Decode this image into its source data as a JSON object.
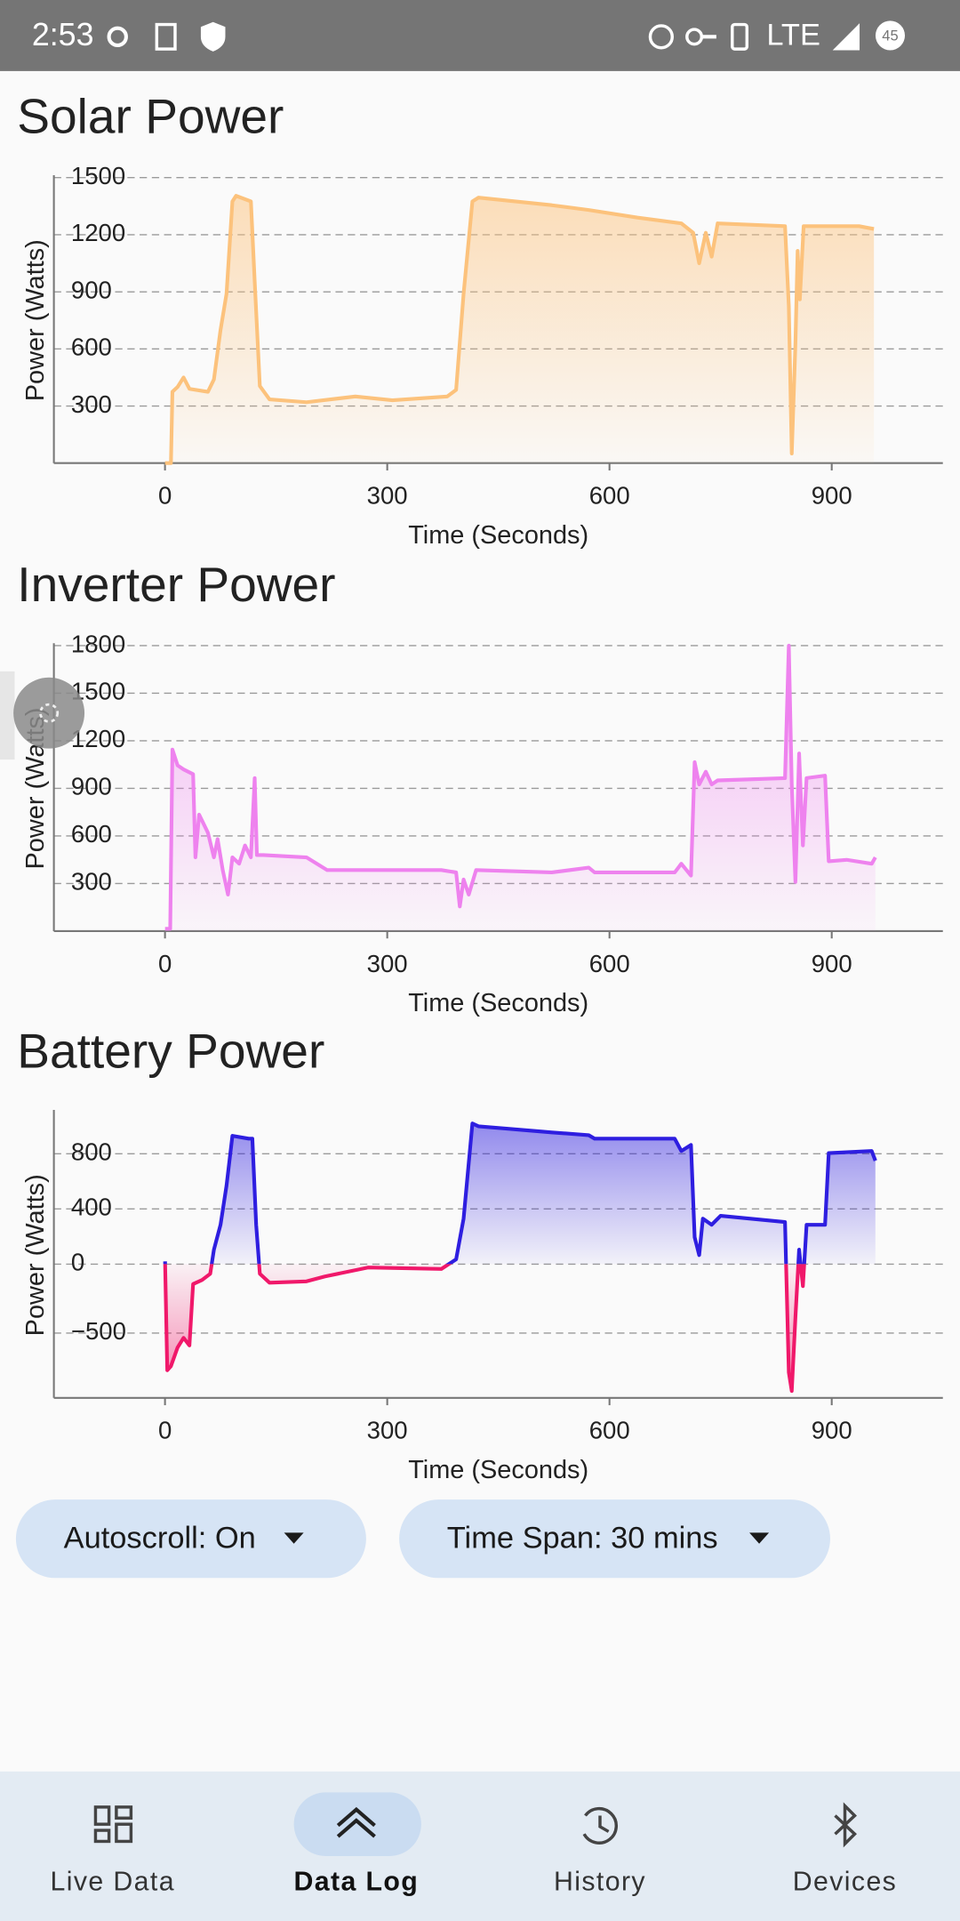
{
  "status_bar": {
    "time": "2:53",
    "network": "LTE",
    "battery": "45"
  },
  "chart_data": [
    {
      "type": "line",
      "title": "Solar Power",
      "x_label": "Time (Seconds)",
      "y_label": "Power (Watts)",
      "x": [
        0,
        8,
        10,
        17,
        25,
        33,
        58,
        66,
        75,
        83,
        91,
        96,
        116,
        121,
        128,
        141,
        191,
        257,
        307,
        381,
        393,
        403,
        415,
        423,
        522,
        572,
        638,
        697,
        713,
        721,
        730,
        738,
        746,
        837,
        842,
        846,
        851,
        854,
        857,
        862,
        937,
        957
      ],
      "series": [
        {
          "color": "#fcc27c",
          "values": [
            0,
            0,
            375,
            400,
            450,
            390,
            375,
            440,
            700,
            890,
            1375,
            1405,
            1375,
            955,
            405,
            335,
            320,
            350,
            330,
            350,
            385,
            890,
            1375,
            1395,
            1355,
            1330,
            1290,
            1260,
            1210,
            1050,
            1210,
            1085,
            1260,
            1245,
            825,
            50,
            630,
            1115,
            860,
            1245,
            1245,
            1230
          ]
        }
      ],
      "xlim": [
        -150,
        1050
      ],
      "xticks": [
        0,
        300,
        600,
        900
      ],
      "ylim": [
        0,
        1500
      ],
      "yticks": [
        300,
        600,
        900,
        1200,
        1500
      ],
      "grid": true
    },
    {
      "type": "line",
      "title": "Inverter Power",
      "x_label": "Time (Seconds)",
      "y_label": "Power (Watts)",
      "x": [
        0,
        7,
        10,
        17,
        25,
        38,
        41,
        46,
        58,
        66,
        71,
        78,
        85,
        91,
        100,
        108,
        116,
        121,
        124,
        133,
        191,
        219,
        274,
        373,
        393,
        398,
        403,
        410,
        420,
        522,
        572,
        580,
        688,
        697,
        710,
        715,
        721,
        730,
        738,
        746,
        837,
        842,
        846,
        851,
        856,
        861,
        866,
        891,
        896,
        920,
        954,
        959
      ],
      "series": [
        {
          "color": "#ee82ee",
          "values": [
            15,
            15,
            1145,
            1045,
            1020,
            990,
            465,
            735,
            620,
            465,
            580,
            385,
            230,
            465,
            425,
            540,
            465,
            965,
            480,
            480,
            465,
            385,
            385,
            385,
            370,
            155,
            325,
            230,
            385,
            370,
            400,
            370,
            370,
            425,
            350,
            1065,
            925,
            1005,
            925,
            950,
            965,
            1800,
            925,
            310,
            1120,
            540,
            965,
            980,
            440,
            450,
            425,
            465
          ]
        }
      ],
      "xlim": [
        -150,
        1050
      ],
      "xticks": [
        0,
        300,
        600,
        900
      ],
      "ylim": [
        0,
        1800
      ],
      "yticks": [
        300,
        600,
        900,
        1200,
        1500,
        1800
      ],
      "grid": true
    },
    {
      "type": "line",
      "title": "Battery Power",
      "x_label": "Time (Seconds)",
      "y_label": "Power (Watts)",
      "x": [
        0,
        3,
        8,
        17,
        25,
        33,
        38,
        50,
        61,
        66,
        75,
        83,
        91,
        113,
        118,
        123,
        128,
        141,
        191,
        216,
        274,
        373,
        393,
        403,
        415,
        423,
        522,
        572,
        580,
        688,
        697,
        710,
        715,
        721,
        726,
        738,
        750,
        837,
        842,
        846,
        851,
        856,
        861,
        866,
        891,
        896,
        954,
        959
      ],
      "series": [
        {
          "color": "#2e1ee0",
          "negative_color": "#f0186a",
          "values": [
            20,
            -770,
            -740,
            -605,
            -535,
            -590,
            -145,
            -115,
            -70,
            105,
            285,
            570,
            930,
            910,
            910,
            285,
            -70,
            -135,
            -125,
            -90,
            -25,
            -35,
            35,
            330,
            1020,
            1000,
            955,
            935,
            910,
            910,
            820,
            865,
            195,
            65,
            330,
            285,
            350,
            305,
            -785,
            -920,
            -385,
            105,
            -160,
            285,
            285,
            805,
            820,
            750
          ]
        }
      ],
      "xlim": [
        -150,
        1050
      ],
      "xticks": [
        0,
        300,
        600,
        900
      ],
      "ylim": [
        -970,
        1100
      ],
      "yticks": [
        800,
        400,
        0,
        {
          "value": -500,
          "label": "−500"
        }
      ],
      "grid": true
    }
  ],
  "controls": {
    "autoscroll": "Autoscroll: On",
    "time_span": "Time Span: 30 mins"
  },
  "nav": {
    "items": [
      "Live Data",
      "Data Log",
      "History",
      "Devices"
    ]
  }
}
